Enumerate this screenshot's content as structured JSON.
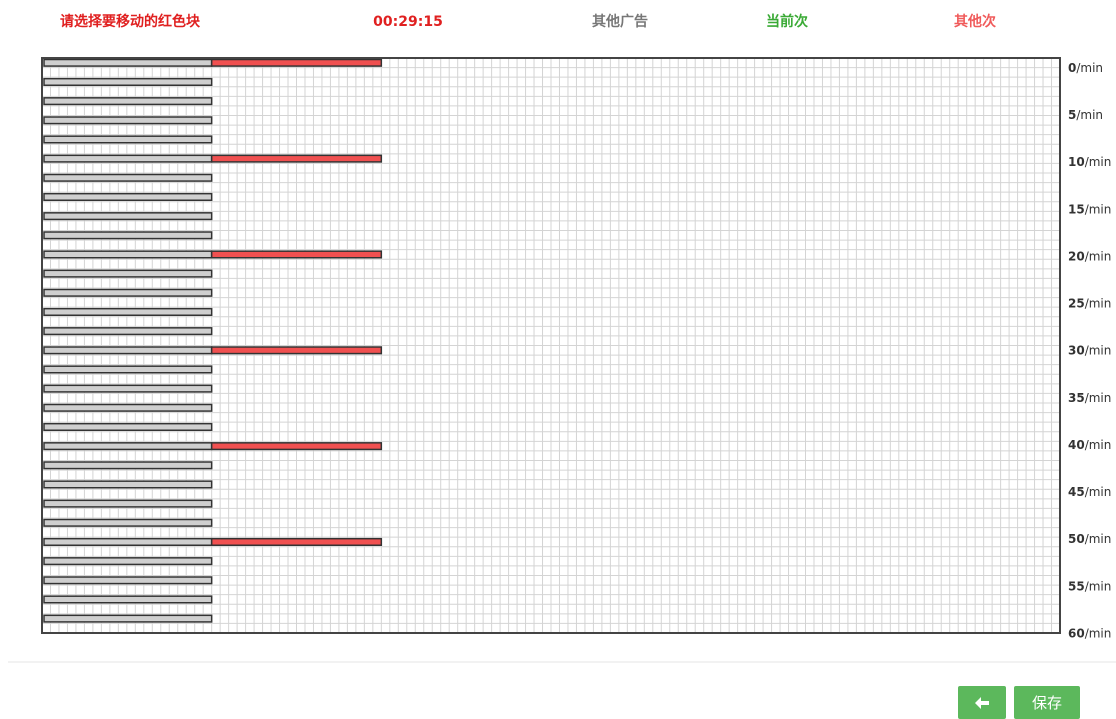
{
  "header": {
    "instruction": "请选择要移动的红色块",
    "timer": "00:29:15",
    "legend": [
      "其他广告",
      "当前次",
      "其他次"
    ]
  },
  "axis": {
    "labels": [
      "0",
      "5",
      "10",
      "15",
      "20",
      "25",
      "30",
      "35",
      "40",
      "45",
      "50",
      "55",
      "60"
    ],
    "unit": "/min"
  },
  "buttons": {
    "save": "保存"
  }
}
